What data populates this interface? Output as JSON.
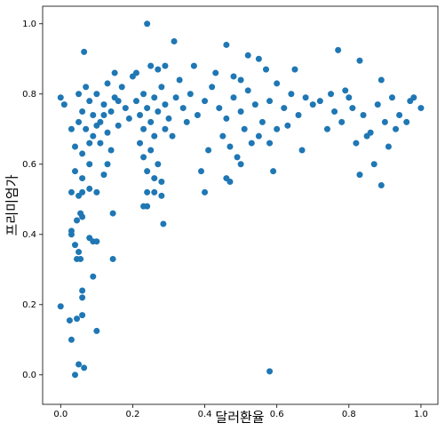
{
  "chart_data": {
    "type": "scatter",
    "x_label": "달러환율",
    "y_label": "프리미엄가",
    "color": "#1f77b4",
    "x": [
      0.0,
      0.01,
      0.0,
      0.03,
      0.03,
      0.025,
      0.03,
      0.04,
      0.045,
      0.05,
      0.065,
      0.06,
      0.06,
      0.06,
      0.1,
      0.09,
      0.04,
      0.045,
      0.05,
      0.055,
      0.08,
      0.09,
      0.1,
      0.045,
      0.06,
      0.055,
      0.145,
      0.145,
      0.03,
      0.05,
      0.06,
      0.08,
      0.1,
      0.24,
      0.315,
      0.065,
      0.58,
      0.77,
      0.83,
      0.89,
      0.83,
      0.59,
      0.4,
      0.285,
      0.24,
      0.23,
      0.28,
      0.26,
      0.04,
      0.06,
      0.08,
      0.12,
      0.13,
      0.47,
      0.46,
      0.5,
      0.58,
      0.05,
      0.06,
      0.07,
      0.08,
      0.09,
      0.1,
      0.11,
      0.12,
      0.13,
      0.14,
      0.15,
      0.16,
      0.17,
      0.18,
      0.19,
      0.2,
      0.07,
      0.09,
      0.11,
      0.13,
      0.15,
      0.04,
      0.06,
      0.08,
      0.1,
      0.12,
      0.14,
      0.03,
      0.05,
      0.16,
      0.21,
      0.22,
      0.23,
      0.24,
      0.25,
      0.26,
      0.27,
      0.28,
      0.29,
      0.3,
      0.22,
      0.23,
      0.24,
      0.25,
      0.26,
      0.27,
      0.28,
      0.29,
      0.21,
      0.25,
      0.27,
      0.29,
      0.32,
      0.34,
      0.33,
      0.35,
      0.31,
      0.24,
      0.26,
      0.23,
      0.36,
      0.38,
      0.4,
      0.42,
      0.44,
      0.46,
      0.48,
      0.5,
      0.52,
      0.54,
      0.56,
      0.58,
      0.6,
      0.62,
      0.64,
      0.66,
      0.68,
      0.7,
      0.45,
      0.47,
      0.49,
      0.51,
      0.53,
      0.48,
      0.46,
      0.52,
      0.55,
      0.57,
      0.65,
      0.41,
      0.39,
      0.43,
      0.6,
      0.67,
      0.63,
      0.5,
      0.37,
      0.55,
      0.72,
      0.74,
      0.76,
      0.78,
      0.8,
      0.82,
      0.84,
      0.86,
      0.88,
      0.9,
      0.92,
      0.94,
      0.96,
      0.98,
      1.0,
      0.89,
      0.91,
      0.85,
      0.79,
      0.75,
      0.87,
      0.93,
      0.97,
      0.81
    ],
    "y": [
      0.79,
      0.77,
      0.195,
      0.41,
      0.4,
      0.155,
      0.1,
      0.0,
      0.16,
      0.03,
      0.02,
      0.17,
      0.24,
      0.22,
      0.125,
      0.28,
      0.37,
      0.33,
      0.35,
      0.33,
      0.39,
      0.38,
      0.38,
      0.44,
      0.45,
      0.46,
      0.33,
      0.46,
      0.52,
      0.51,
      0.52,
      0.53,
      0.52,
      1.0,
      0.95,
      0.92,
      0.01,
      0.925,
      0.895,
      0.54,
      0.57,
      0.58,
      0.52,
      0.43,
      0.48,
      0.48,
      0.51,
      0.52,
      0.58,
      0.56,
      0.6,
      0.57,
      0.6,
      0.55,
      0.56,
      0.6,
      0.66,
      0.72,
      0.75,
      0.7,
      0.78,
      0.74,
      0.8,
      0.72,
      0.77,
      0.83,
      0.75,
      0.79,
      0.71,
      0.82,
      0.76,
      0.73,
      0.85,
      0.82,
      0.68,
      0.66,
      0.69,
      0.86,
      0.65,
      0.63,
      0.66,
      0.71,
      0.74,
      0.64,
      0.7,
      0.8,
      0.78,
      0.78,
      0.74,
      0.8,
      0.76,
      0.72,
      0.79,
      0.75,
      0.82,
      0.77,
      0.73,
      0.66,
      0.62,
      0.58,
      0.64,
      0.68,
      0.6,
      0.55,
      0.7,
      0.86,
      0.88,
      0.87,
      0.88,
      0.79,
      0.76,
      0.84,
      0.72,
      0.68,
      0.52,
      0.56,
      0.7,
      0.8,
      0.74,
      0.78,
      0.82,
      0.76,
      0.73,
      0.79,
      0.75,
      0.81,
      0.77,
      0.72,
      0.78,
      0.83,
      0.76,
      0.8,
      0.74,
      0.79,
      0.77,
      0.68,
      0.65,
      0.62,
      0.7,
      0.66,
      0.85,
      0.94,
      0.91,
      0.9,
      0.87,
      0.87,
      0.64,
      0.58,
      0.86,
      0.7,
      0.64,
      0.71,
      0.84,
      0.88,
      0.68,
      0.78,
      0.7,
      0.75,
      0.72,
      0.79,
      0.66,
      0.74,
      0.69,
      0.77,
      0.72,
      0.79,
      0.74,
      0.72,
      0.79,
      0.76,
      0.84,
      0.65,
      0.68,
      0.81,
      0.8,
      0.6,
      0.7,
      0.78,
      0.76
    ],
    "xlim": [
      -0.05,
      1.047
    ],
    "ylim": [
      -0.084,
      1.05
    ],
    "xticks": [
      {
        "value": 0,
        "label": "0.0"
      },
      0.2,
      0.4,
      0.6,
      0.8,
      {
        "value": 1,
        "label": "1.0"
      }
    ],
    "yticks": [
      {
        "value": 0,
        "label": "0.0"
      },
      0.2,
      0.4,
      0.6,
      0.8,
      {
        "value": 1,
        "label": "1.0"
      }
    ]
  }
}
